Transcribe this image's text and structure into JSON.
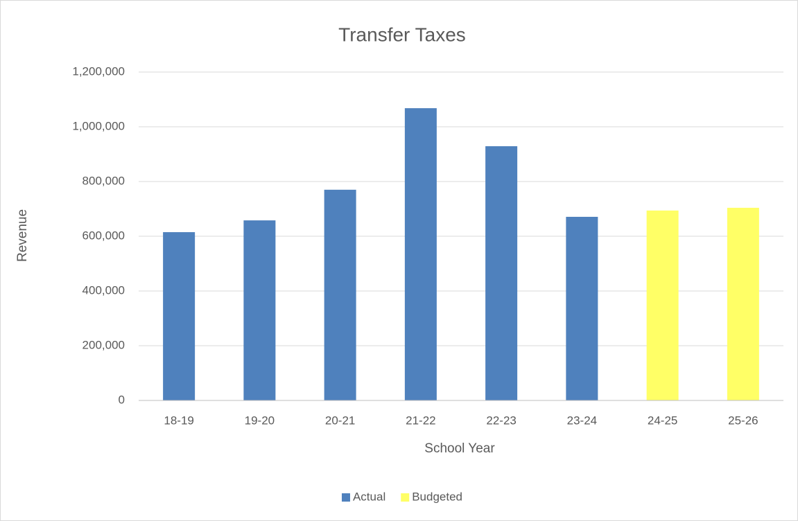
{
  "chart_data": {
    "type": "bar",
    "title": "Transfer Taxes",
    "x_label": "School Year",
    "y_label": "Revenue",
    "categories": [
      "18-19",
      "19-20",
      "20-21",
      "21-22",
      "22-23",
      "23-24",
      "24-25",
      "25-26"
    ],
    "series": [
      {
        "name": "Actual",
        "color": "#4f81bd",
        "values": [
          615000,
          658000,
          770000,
          1068000,
          929000,
          671000,
          null,
          null
        ]
      },
      {
        "name": "Budgeted",
        "color": "#ffff66",
        "values": [
          null,
          null,
          null,
          null,
          null,
          null,
          694000,
          704000
        ]
      }
    ],
    "ylim": [
      0,
      1200000
    ],
    "yticks": [
      0,
      {
        "value": 200000,
        "label": "200,000"
      },
      {
        "value": 400000,
        "label": "400,000"
      },
      {
        "value": 600000,
        "label": "600,000"
      },
      {
        "value": 800000,
        "label": "800,000"
      },
      {
        "value": 1000000,
        "label": "1,000,000"
      },
      {
        "value": 1200000,
        "label": "1,200,000"
      }
    ],
    "grid": true,
    "legend": "bottom"
  }
}
